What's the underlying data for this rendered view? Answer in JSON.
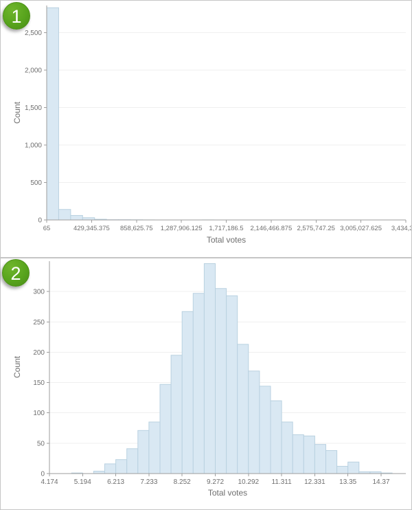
{
  "colors": {
    "badge_green": "#58a41d",
    "badge_green_light": "#6fb52c",
    "badge_green_dark": "#4a8c18",
    "bar_fill": "#d9e8f3",
    "bar_stroke": "#b9d1e0",
    "axis_line": "#9e9e9e",
    "tick_text": "#6e6e6e",
    "gridline": "#efefef",
    "panel_border": "#c5c5c5"
  },
  "panels": [
    {
      "badge": "1",
      "xlabel": "Total votes",
      "ylabel": "Count"
    },
    {
      "badge": "2",
      "xlabel": "Total votes",
      "ylabel": "Count"
    }
  ],
  "chart_data": [
    {
      "type": "bar",
      "title": "",
      "xlabel": "Total votes",
      "ylabel": "Count",
      "grid": true,
      "legend": false,
      "bin_start": 65,
      "bin_width": 114474.77,
      "ylim": [
        0,
        2860
      ],
      "y_ticks": [
        0,
        500,
        1000,
        1500,
        2000,
        2500
      ],
      "y_tick_labels": [
        "0",
        "500",
        "1,000",
        "1,500",
        "2,000",
        "2,500"
      ],
      "x_tick_labels": [
        "65",
        "429,345.375",
        "858,625.75",
        "1,287,906.125",
        "1,717,186.5",
        "2,146,466.875",
        "2,575,747.25",
        "3,005,027.625",
        "3,434,308"
      ],
      "values": [
        2830,
        140,
        60,
        30,
        9,
        3,
        3,
        2,
        1,
        0,
        0,
        0,
        0,
        1,
        0,
        0,
        0,
        0,
        0,
        0,
        0,
        0,
        0,
        0,
        0,
        0,
        0,
        0,
        0,
        0
      ]
    },
    {
      "type": "bar",
      "title": "",
      "xlabel": "Total votes",
      "ylabel": "Count",
      "grid": true,
      "legend": false,
      "bin_start": 4.174,
      "bin_width": 0.33987,
      "ylim": [
        0,
        350
      ],
      "y_ticks": [
        0,
        50,
        100,
        150,
        200,
        250,
        300
      ],
      "y_tick_labels": [
        "0",
        "50",
        "100",
        "150",
        "200",
        "250",
        "300"
      ],
      "x_tick_labels": [
        "4.174",
        "5.194",
        "6.213",
        "7.233",
        "8.252",
        "9.272",
        "10.292",
        "11.311",
        "12.331",
        "13.35",
        "14.37"
      ],
      "values": [
        0,
        0,
        1,
        0,
        4,
        16,
        23,
        41,
        71,
        85,
        147,
        195,
        267,
        297,
        346,
        305,
        293,
        213,
        169,
        144,
        120,
        85,
        64,
        62,
        48,
        38,
        12,
        19,
        3,
        3,
        1
      ]
    }
  ]
}
